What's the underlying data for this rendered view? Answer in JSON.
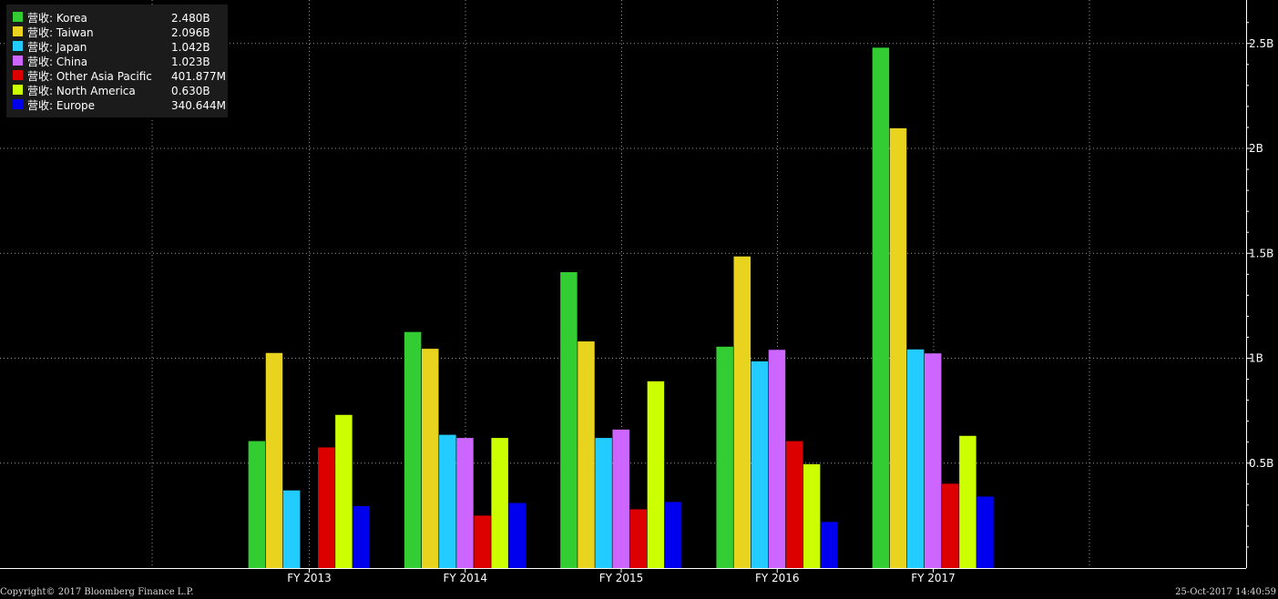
{
  "chart_data": {
    "type": "bar",
    "categories": [
      "FY 2013",
      "FY 2014",
      "FY 2015",
      "FY 2016",
      "FY 2017"
    ],
    "series": [
      {
        "name": "营收: Korea",
        "legend_value": "2.480B",
        "color": "#33cc33",
        "values": [
          0.605,
          1.125,
          1.41,
          1.055,
          2.48
        ]
      },
      {
        "name": "营收: Taiwan",
        "legend_value": "2.096B",
        "color": "#e8d41f",
        "values": [
          1.025,
          1.045,
          1.08,
          1.485,
          2.096
        ]
      },
      {
        "name": "营收: Japan",
        "legend_value": "1.042B",
        "color": "#22ccff",
        "values": [
          0.37,
          0.635,
          0.62,
          0.985,
          1.042
        ]
      },
      {
        "name": "营收: China",
        "legend_value": "1.023B",
        "color": "#cc66ff",
        "values": [
          null,
          0.62,
          0.66,
          1.04,
          1.023
        ]
      },
      {
        "name": "营收: Other Asia Pacific",
        "legend_value": "401.877M",
        "color": "#dd0000",
        "values": [
          0.575,
          0.25,
          0.28,
          0.605,
          0.401877
        ]
      },
      {
        "name": "营收: North America",
        "legend_value": "0.630B",
        "color": "#ccff00",
        "values": [
          0.73,
          0.62,
          0.89,
          0.495,
          0.63
        ]
      },
      {
        "name": "营收: Europe",
        "legend_value": "340.644M",
        "color": "#0000ee",
        "values": [
          0.295,
          0.31,
          0.315,
          0.22,
          0.340644
        ]
      }
    ],
    "yticks": [
      0.5,
      1,
      1.5,
      2,
      2.5
    ],
    "ytick_labels": [
      "0.5B",
      "1B",
      "1.5B",
      "2B",
      "2.5B"
    ],
    "ylim": [
      0,
      2.7
    ],
    "grid": true,
    "legend_position": "top-left",
    "background": "#000000",
    "grid_color": "#9a9a9a",
    "text_color": "#ffffff"
  },
  "footer": {
    "copyright": "Copyright© 2017 Bloomberg Finance L.P.",
    "timestamp": "25-Oct-2017 14:40:59"
  }
}
